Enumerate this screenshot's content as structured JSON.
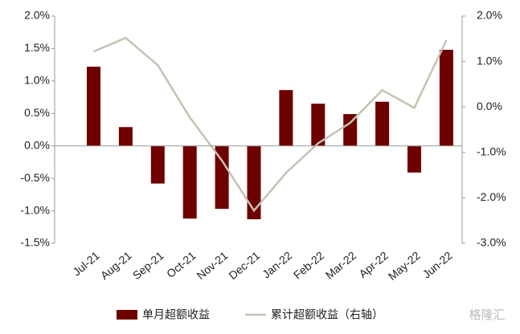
{
  "chart_data": {
    "type": "bar-line",
    "categories": [
      "Jul-21",
      "Aug-21",
      "Sep-21",
      "Oct-21",
      "Nov-21",
      "Dec-21",
      "Jan-22",
      "Feb-22",
      "Mar-22",
      "Apr-22",
      "May-22",
      "Jun-22"
    ],
    "series": [
      {
        "name": "单月超额收益",
        "type": "bar",
        "color": "#6e0000",
        "values": [
          1.22,
          0.29,
          -0.58,
          -1.12,
          -0.97,
          -1.13,
          0.86,
          0.65,
          0.49,
          0.68,
          -0.41,
          1.48
        ]
      },
      {
        "name": "累计超额收益（右轴）",
        "type": "line",
        "axis": "y2",
        "color": "#c3c3b3",
        "values": [
          1.22,
          1.52,
          0.92,
          -0.23,
          -1.18,
          -2.28,
          -1.45,
          -0.8,
          -0.35,
          0.37,
          -0.02,
          1.47
        ]
      }
    ],
    "ylim": [
      -1.5,
      2.0
    ],
    "yticks": [
      {
        "value": -1.5,
        "label": "-1.5%"
      },
      {
        "value": -1.0,
        "label": "-1.0%"
      },
      {
        "value": -0.5,
        "label": "-0.5%"
      },
      {
        "value": 0.0,
        "label": "0.0%"
      },
      {
        "value": 0.5,
        "label": "0.5%"
      },
      {
        "value": 1.0,
        "label": "1.0%"
      },
      {
        "value": 1.5,
        "label": "1.5%"
      },
      {
        "value": 2.0,
        "label": "2.0%"
      }
    ],
    "y2lim": [
      -3.0,
      2.0
    ],
    "y2ticks": [
      {
        "value": -3.0,
        "label": "-3.0%"
      },
      {
        "value": -2.0,
        "label": "-2.0%"
      },
      {
        "value": -1.0,
        "label": "-1.0%"
      },
      {
        "value": 0.0,
        "label": "0.0%"
      },
      {
        "value": 1.0,
        "label": "1.0%"
      },
      {
        "value": 2.0,
        "label": "2.0%"
      }
    ],
    "legend": "bottom",
    "watermark": "格隆汇"
  }
}
